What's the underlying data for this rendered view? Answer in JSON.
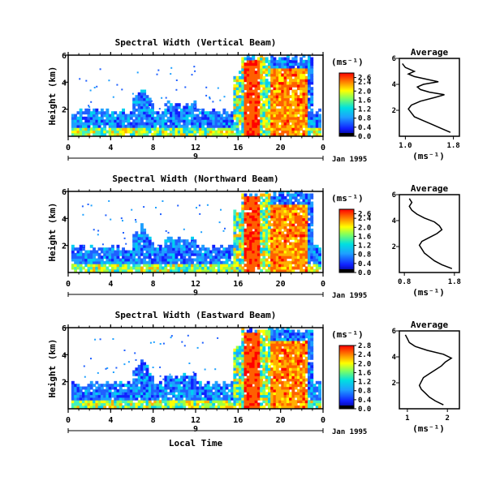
{
  "chart_data": [
    {
      "type": "heatmap",
      "title": "Spectral Width (Vertical Beam)",
      "ylabel": "Height (km)",
      "x_ticks": [
        "0",
        "4",
        "8",
        "12",
        "16",
        "20",
        "0"
      ],
      "xlim": [
        0,
        24
      ],
      "y_ticks": [
        "6",
        "4",
        "2"
      ],
      "ylim": [
        0,
        6
      ],
      "date_label": "Jan 1995",
      "day_marker": "9",
      "colorbar": {
        "unit": "(ms⁻¹)",
        "ticks": [
          "2.6",
          "2.4",
          "2.0",
          "1.6",
          "1.2",
          "0.8",
          "0.4",
          "0.0"
        ],
        "range": [
          0,
          2.8
        ]
      },
      "average": {
        "title": "Average",
        "xlabel": "(ms⁻¹)",
        "x_ticks": [
          "1.0",
          "1.8"
        ],
        "xlim": [
          0.9,
          1.9
        ],
        "y_ticks": [
          "6",
          "4",
          "2"
        ],
        "profile": [
          [
            0.3,
            1.75
          ],
          [
            0.6,
            1.6
          ],
          [
            0.9,
            1.45
          ],
          [
            1.2,
            1.3
          ],
          [
            1.5,
            1.15
          ],
          [
            1.8,
            1.1
          ],
          [
            2.1,
            1.05
          ],
          [
            2.4,
            1.1
          ],
          [
            2.7,
            1.25
          ],
          [
            3.0,
            1.5
          ],
          [
            3.2,
            1.65
          ],
          [
            3.4,
            1.4
          ],
          [
            3.6,
            1.25
          ],
          [
            3.8,
            1.2
          ],
          [
            4.0,
            1.3
          ],
          [
            4.2,
            1.55
          ],
          [
            4.4,
            1.35
          ],
          [
            4.6,
            1.15
          ],
          [
            4.8,
            1.05
          ],
          [
            5.0,
            1.15
          ],
          [
            5.3,
            1.0
          ],
          [
            5.6,
            0.95
          ]
        ]
      }
    },
    {
      "type": "heatmap",
      "title": "Spectral Width (Northward Beam)",
      "ylabel": "Height (km)",
      "x_ticks": [
        "0",
        "4",
        "8",
        "12",
        "16",
        "20",
        "0"
      ],
      "xlim": [
        0,
        24
      ],
      "y_ticks": [
        "6",
        "4",
        "2"
      ],
      "ylim": [
        0,
        6
      ],
      "date_label": "Jan 1995",
      "day_marker": "9",
      "colorbar": {
        "unit": "(ms⁻¹)",
        "ticks": [
          "2.6",
          "2.4",
          "2.0",
          "1.6",
          "1.2",
          "0.8",
          "0.4",
          "0.0"
        ],
        "range": [
          0,
          2.8
        ]
      },
      "average": {
        "title": "Average",
        "xlabel": "(ms⁻¹)",
        "x_ticks": [
          "0.8",
          "1.8"
        ],
        "xlim": [
          0.7,
          1.9
        ],
        "y_ticks": [
          "6",
          "4",
          "2"
        ],
        "profile": [
          [
            0.3,
            1.75
          ],
          [
            0.6,
            1.55
          ],
          [
            0.9,
            1.4
          ],
          [
            1.2,
            1.3
          ],
          [
            1.5,
            1.2
          ],
          [
            1.8,
            1.15
          ],
          [
            2.1,
            1.1
          ],
          [
            2.4,
            1.15
          ],
          [
            2.7,
            1.3
          ],
          [
            3.0,
            1.45
          ],
          [
            3.3,
            1.55
          ],
          [
            3.6,
            1.5
          ],
          [
            3.9,
            1.4
          ],
          [
            4.2,
            1.2
          ],
          [
            4.5,
            1.05
          ],
          [
            4.8,
            0.95
          ],
          [
            5.1,
            0.9
          ],
          [
            5.4,
            0.95
          ],
          [
            5.7,
            0.9
          ]
        ]
      }
    },
    {
      "type": "heatmap",
      "title": "Spectral Width (Eastward Beam)",
      "ylabel": "Height (km)",
      "xlabel": "Local Time",
      "x_ticks": [
        "0",
        "4",
        "8",
        "12",
        "16",
        "20",
        "0"
      ],
      "xlim": [
        0,
        24
      ],
      "y_ticks": [
        "6",
        "4",
        "2"
      ],
      "ylim": [
        0,
        6
      ],
      "date_label": "Jan 1995",
      "day_marker": "9",
      "colorbar": {
        "unit": "(ms⁻¹)",
        "ticks": [
          "2.8",
          "2.4",
          "2.0",
          "1.6",
          "1.2",
          "0.8",
          "0.4",
          "0.0"
        ],
        "range": [
          0,
          2.8
        ]
      },
      "average": {
        "title": "Average",
        "xlabel": "(ms⁻¹)",
        "x_ticks": [
          "1",
          "2"
        ],
        "xlim": [
          0.8,
          2.3
        ],
        "y_ticks": [
          "6",
          "4",
          "2"
        ],
        "profile": [
          [
            0.3,
            1.9
          ],
          [
            0.6,
            1.7
          ],
          [
            0.9,
            1.55
          ],
          [
            1.2,
            1.45
          ],
          [
            1.5,
            1.35
          ],
          [
            1.8,
            1.3
          ],
          [
            2.1,
            1.35
          ],
          [
            2.4,
            1.4
          ],
          [
            2.7,
            1.55
          ],
          [
            3.0,
            1.7
          ],
          [
            3.3,
            1.85
          ],
          [
            3.6,
            1.95
          ],
          [
            3.9,
            2.1
          ],
          [
            4.2,
            1.9
          ],
          [
            4.5,
            1.5
          ],
          [
            4.8,
            1.2
          ],
          [
            5.1,
            1.05
          ],
          [
            5.4,
            1.0
          ],
          [
            5.7,
            0.95
          ]
        ]
      }
    }
  ]
}
